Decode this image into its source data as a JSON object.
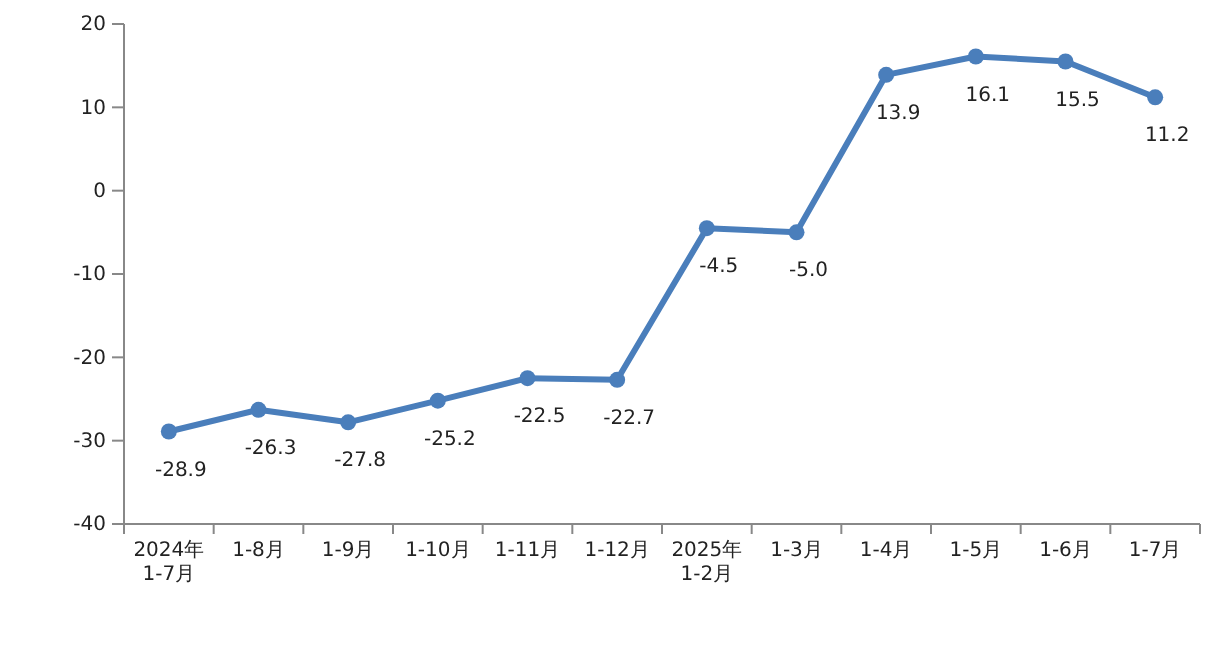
{
  "chart_data": {
    "type": "line",
    "categories": [
      "2024年\n1-7月",
      "1-8月",
      "1-9月",
      "1-10月",
      "1-11月",
      "1-12月",
      "2025年\n1-2月",
      "1-3月",
      "1-4月",
      "1-5月",
      "1-6月",
      "1-7月"
    ],
    "series": [
      {
        "color": "#4a7ebb",
        "values": [
          -28.9,
          -26.3,
          -27.8,
          -25.2,
          -22.5,
          -22.7,
          -4.5,
          -5.0,
          13.9,
          16.1,
          15.5,
          11.2
        ],
        "value_labels": [
          "-28.9",
          "-26.3",
          "-27.8",
          "-25.2",
          "-22.5",
          "-22.7",
          "-4.5",
          "-5.0",
          "13.9",
          "16.1",
          "15.5",
          "11.2"
        ]
      }
    ],
    "ylim": [
      -40,
      20
    ],
    "yticks": [
      -40,
      -30,
      -20,
      -10,
      0,
      10,
      20
    ],
    "marker": "circle",
    "line_style": "solid",
    "grid": false
  }
}
